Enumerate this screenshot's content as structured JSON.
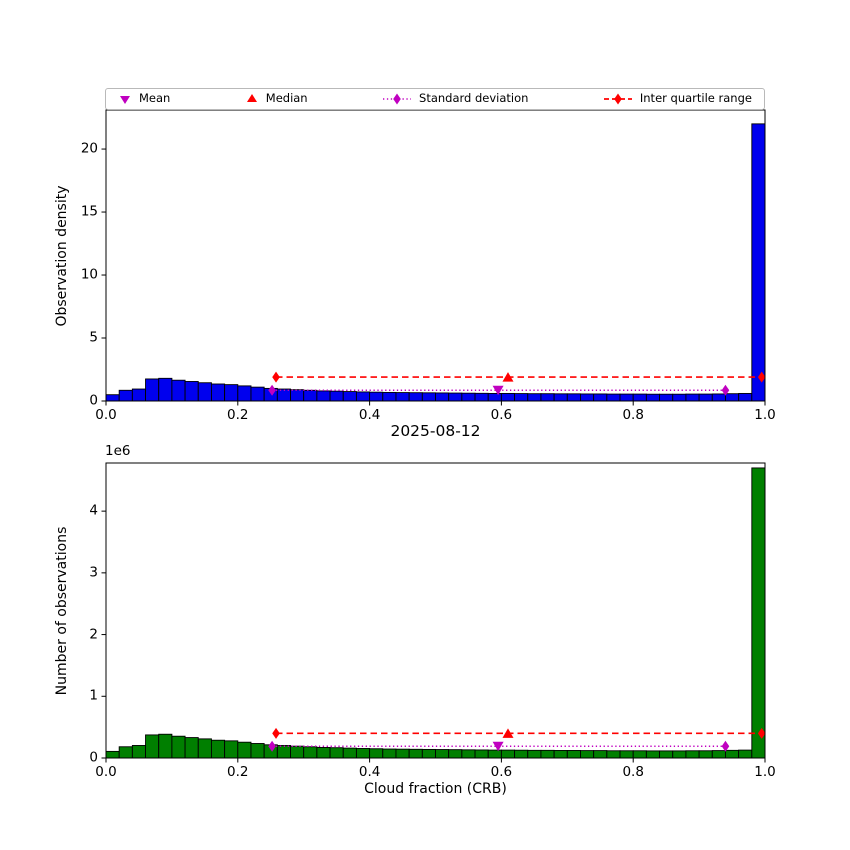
{
  "figure": {
    "title": "2025-08-12",
    "xlabel": "Cloud fraction (CRB)",
    "background": "#ffffff"
  },
  "legend": {
    "items": [
      {
        "label": "Mean",
        "marker": "triangle-down",
        "color": "#c000c0"
      },
      {
        "label": "Median",
        "marker": "triangle-up",
        "color": "#ff0000"
      },
      {
        "label": "Standard deviation",
        "marker": "diamond",
        "line": "dotted",
        "color": "#c000c0"
      },
      {
        "label": "Inter quartile range",
        "marker": "diamond",
        "line": "dashed",
        "color": "#ff0000"
      }
    ]
  },
  "chart_data": [
    {
      "type": "bar",
      "panel": "top",
      "ylabel": "Observation density",
      "bar_color": "#0000ee",
      "bar_edge_color": "#000000",
      "xlim": [
        0,
        1
      ],
      "ylim": [
        0,
        23.1
      ],
      "x_tick_labels": [
        "0.0",
        "0.2",
        "0.4",
        "0.6",
        "0.8",
        "1.0"
      ],
      "y_tick_labels": [
        "0",
        "5",
        "10",
        "15",
        "20"
      ],
      "bin_start": 0,
      "bin_width": 0.02,
      "values": [
        0.5,
        0.85,
        0.95,
        1.75,
        1.8,
        1.65,
        1.55,
        1.45,
        1.35,
        1.3,
        1.2,
        1.1,
        1.0,
        0.95,
        0.9,
        0.85,
        0.8,
        0.78,
        0.75,
        0.72,
        0.7,
        0.68,
        0.67,
        0.66,
        0.65,
        0.64,
        0.63,
        0.62,
        0.61,
        0.6,
        0.6,
        0.59,
        0.58,
        0.58,
        0.57,
        0.57,
        0.56,
        0.56,
        0.55,
        0.55,
        0.55,
        0.54,
        0.54,
        0.54,
        0.55,
        0.55,
        0.56,
        0.58,
        0.6,
        22.0
      ],
      "markers": {
        "mean": {
          "x": 0.595,
          "y": 0.85,
          "color": "#c000c0"
        },
        "median": {
          "x": 0.61,
          "y": 1.9,
          "color": "#ff0000"
        },
        "std": {
          "x0": 0.252,
          "x1": 0.94,
          "y": 0.85,
          "color": "#c000c0",
          "style": "dotted"
        },
        "iqr": {
          "x0": 0.258,
          "x1": 0.995,
          "y": 1.9,
          "color": "#ff0000",
          "style": "dashed"
        }
      }
    },
    {
      "type": "bar",
      "panel": "bottom",
      "ylabel": "Number of observations",
      "y_offset_label": "1e6",
      "y_unit": 1000000,
      "bar_color": "#007f00",
      "bar_edge_color": "#000000",
      "xlim": [
        0,
        1
      ],
      "ylim": [
        0,
        4.78
      ],
      "x_tick_labels": [
        "0.0",
        "0.2",
        "0.4",
        "0.6",
        "0.8",
        "1.0"
      ],
      "y_tick_labels": [
        "0",
        "1",
        "2",
        "3",
        "4"
      ],
      "bin_start": 0,
      "bin_width": 0.02,
      "values": [
        0.107,
        0.182,
        0.203,
        0.374,
        0.385,
        0.353,
        0.331,
        0.31,
        0.288,
        0.278,
        0.256,
        0.235,
        0.214,
        0.203,
        0.192,
        0.182,
        0.171,
        0.167,
        0.16,
        0.154,
        0.15,
        0.145,
        0.143,
        0.141,
        0.139,
        0.137,
        0.135,
        0.132,
        0.13,
        0.128,
        0.128,
        0.126,
        0.124,
        0.124,
        0.122,
        0.122,
        0.12,
        0.12,
        0.117,
        0.117,
        0.117,
        0.115,
        0.115,
        0.115,
        0.117,
        0.117,
        0.12,
        0.124,
        0.128,
        4.7
      ],
      "markers": {
        "mean": {
          "x": 0.595,
          "y": 0.19,
          "color": "#c000c0"
        },
        "median": {
          "x": 0.61,
          "y": 0.4,
          "color": "#ff0000"
        },
        "std": {
          "x0": 0.252,
          "x1": 0.94,
          "y": 0.19,
          "color": "#c000c0",
          "style": "dotted"
        },
        "iqr": {
          "x0": 0.258,
          "x1": 0.995,
          "y": 0.4,
          "color": "#ff0000",
          "style": "dashed"
        }
      }
    }
  ]
}
